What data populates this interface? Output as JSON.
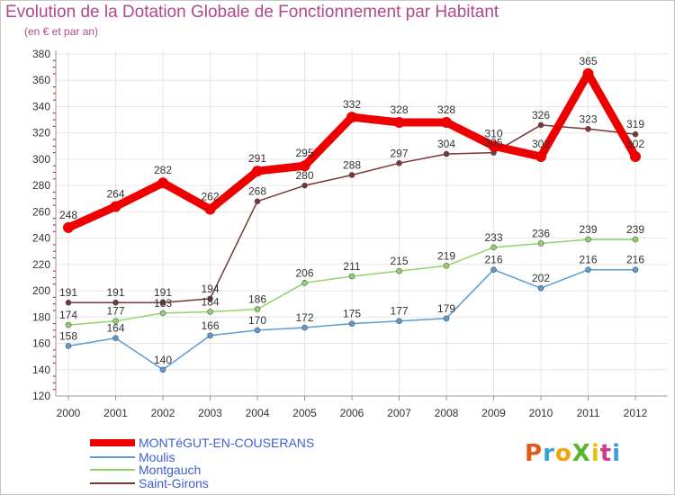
{
  "header": {
    "title": "Evolution de la Dotation Globale de Fonctionnement par Habitant",
    "subtitle": "(en € et par an)"
  },
  "logo": {
    "text": "ProXiti"
  },
  "colors": {
    "axis": "#999999",
    "grid": "#e6e6e6",
    "minor_tick": "#d00000",
    "title": "#b0488a",
    "legend_text": "#3c5fcf"
  },
  "chart_data": {
    "type": "line",
    "title": "Evolution de la Dotation Globale de Fonctionnement par Habitant",
    "subtitle": "(en € et par an)",
    "xlabel": "",
    "ylabel": "",
    "ylim": [
      120,
      380
    ],
    "yticks": [
      120,
      140,
      160,
      180,
      200,
      220,
      240,
      260,
      280,
      300,
      320,
      340,
      360,
      380
    ],
    "grid": true,
    "legend_position": "bottom-left",
    "categories": [
      "2000",
      "2001",
      "2002",
      "2003",
      "2004",
      "2005",
      "2006",
      "2007",
      "2008",
      "2009",
      "2010",
      "2011",
      "2012"
    ],
    "series": [
      {
        "name": "MONTéGUT-EN-COUSERANS",
        "color": "#ee0000",
        "emphasis": true,
        "values": [
          248,
          264,
          282,
          262,
          291,
          295,
          332,
          328,
          328,
          310,
          302,
          365,
          302
        ]
      },
      {
        "name": "Moulis",
        "color": "#5b9bd5",
        "emphasis": false,
        "values": [
          158,
          164,
          140,
          166,
          170,
          172,
          175,
          177,
          179,
          216,
          202,
          216,
          216
        ]
      },
      {
        "name": "Montgauch",
        "color": "#8fd36a",
        "emphasis": false,
        "values": [
          174,
          177,
          183,
          184,
          186,
          206,
          211,
          215,
          219,
          233,
          236,
          239,
          239
        ]
      },
      {
        "name": "Saint-Girons",
        "color": "#7a3535",
        "emphasis": false,
        "values": [
          191,
          191,
          191,
          194,
          268,
          280,
          288,
          297,
          304,
          305,
          326,
          323,
          319
        ]
      }
    ]
  }
}
